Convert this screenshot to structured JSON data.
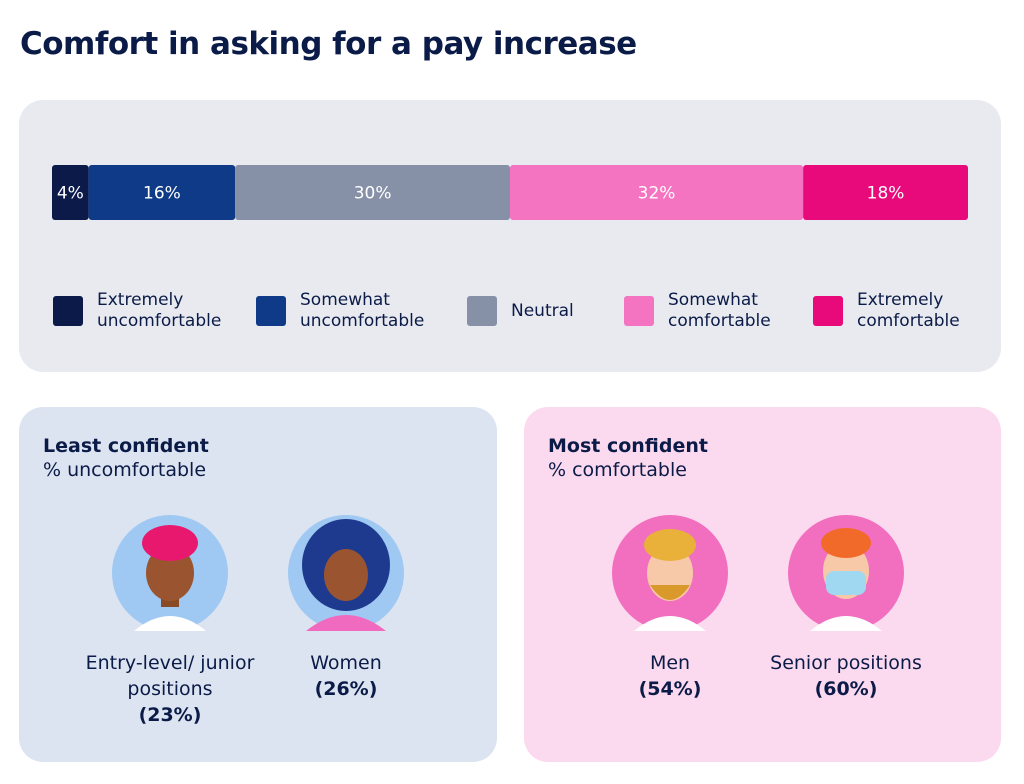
{
  "chart_data": {
    "type": "stacked_bar",
    "title": "Comfort in asking for a pay increase",
    "categories": [
      null
    ],
    "series": [
      {
        "name": "Extremely uncomfortable",
        "color": "#0c1a4a",
        "values": [
          4
        ],
        "value_labels": [
          "4%"
        ]
      },
      {
        "name": "Somewhat uncomfortable",
        "color": "#0f3a88",
        "values": [
          16
        ],
        "value_labels": [
          "16%"
        ]
      },
      {
        "name": "Neutral",
        "color": "#8690a7",
        "values": [
          30
        ],
        "value_labels": [
          "30%"
        ]
      },
      {
        "name": "Somewhat comfortable",
        "color": "#f474c2",
        "values": [
          32
        ],
        "value_labels": [
          "32%"
        ]
      },
      {
        "name": "Extremely comfortable",
        "color": "#e8097b",
        "values": [
          18
        ],
        "value_labels": [
          "18%"
        ]
      }
    ]
  },
  "panels": [
    {
      "title": "Least confident",
      "subtitle": "% uncomfortable",
      "groups": [
        {
          "label": "Entry-level/ junior positions",
          "value": "(23%)"
        },
        {
          "label": "Women",
          "value": "(26%)"
        }
      ]
    },
    {
      "title": "Most confident",
      "subtitle": "% comfortable",
      "groups": [
        {
          "label": "Men",
          "value": "(54%)"
        },
        {
          "label": "Senior positions",
          "value": "(60%)"
        }
      ]
    }
  ]
}
